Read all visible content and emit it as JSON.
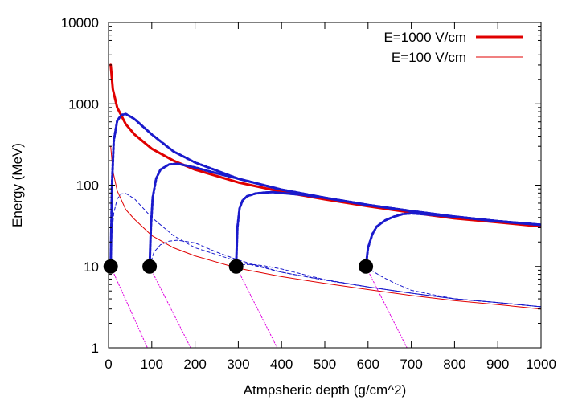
{
  "chart_data": {
    "type": "line",
    "xlabel": "Atmpsheric depth (g/cm^2)",
    "ylabel": "Energy (MeV)",
    "xlim": [
      0,
      1000
    ],
    "ylim": [
      1,
      10000
    ],
    "yscale": "log",
    "grid": false,
    "legend_placement": "top-right",
    "x_ticks": [
      0,
      100,
      200,
      300,
      400,
      500,
      600,
      700,
      800,
      900,
      1000
    ],
    "x_tick_labels": [
      "0",
      "100",
      "200",
      "300",
      "400",
      "500",
      "600",
      "700",
      "800",
      "900",
      "1000"
    ],
    "y_ticks": [
      1,
      10,
      100,
      1000,
      10000
    ],
    "y_tick_labels": [
      "1",
      "10",
      "100",
      "1000",
      "10000"
    ],
    "legend": [
      {
        "label": "E=1000 V/cm",
        "color": "#e00000",
        "style": "thick"
      },
      {
        "label": "E=100 V/cm",
        "color": "#e00000",
        "style": "thin"
      }
    ],
    "series": [
      {
        "role": "legend-1",
        "color": "#e00000",
        "style": "thick-solid",
        "x": [
          5,
          10,
          20,
          40,
          60,
          100,
          150,
          200,
          300,
          400,
          500,
          600,
          700,
          800,
          900,
          1000
        ],
        "y": [
          3000,
          1500,
          900,
          560,
          420,
          280,
          200,
          155,
          108,
          83,
          67,
          55,
          46,
          39,
          35,
          31
        ]
      },
      {
        "role": "legend-2",
        "color": "#e00000",
        "style": "thin-solid",
        "x": [
          5,
          10,
          20,
          40,
          60,
          100,
          150,
          200,
          300,
          400,
          500,
          600,
          700,
          800,
          900,
          1000
        ],
        "y": [
          300,
          150,
          85,
          50,
          38,
          24,
          17,
          13.5,
          9.5,
          7.5,
          6.2,
          5.2,
          4.4,
          3.8,
          3.4,
          3.0
        ]
      },
      {
        "color": "#1a1acc",
        "style": "thick-dashed",
        "x": [
          5,
          8,
          12,
          20,
          30,
          40,
          60,
          100,
          150,
          200,
          300,
          400,
          500,
          600,
          700,
          800,
          900,
          1000
        ],
        "y": [
          10,
          100,
          350,
          620,
          730,
          750,
          650,
          420,
          260,
          190,
          120,
          88,
          70,
          57,
          48,
          41,
          36,
          32.5
        ]
      },
      {
        "color": "#1a1acc",
        "style": "thick-dashed",
        "x": [
          95,
          98,
          102,
          110,
          120,
          140,
          160,
          200,
          250,
          300,
          400,
          500,
          600,
          700,
          800,
          900,
          1000
        ],
        "y": [
          10,
          30,
          70,
          120,
          155,
          180,
          183,
          165,
          140,
          120,
          88,
          70,
          57,
          48,
          41,
          36,
          32.5
        ]
      },
      {
        "color": "#1a1acc",
        "style": "thick-dashed",
        "x": [
          295,
          298,
          303,
          310,
          320,
          340,
          360,
          380,
          400,
          450,
          500,
          600,
          700,
          800,
          900,
          1000
        ],
        "y": [
          10,
          30,
          52,
          65,
          73,
          79,
          81,
          82,
          80,
          76,
          70,
          57,
          48,
          41,
          36,
          32.5
        ]
      },
      {
        "color": "#1a1acc",
        "style": "thick-dashed",
        "x": [
          595,
          600,
          610,
          620,
          640,
          660,
          680,
          700,
          750,
          800,
          900,
          1000
        ],
        "y": [
          10,
          17,
          25,
          31,
          37,
          41,
          44,
          45,
          43,
          41,
          36,
          32.5
        ]
      },
      {
        "color": "#1a1acc",
        "style": "thin-dashed",
        "x": [
          5,
          8,
          12,
          20,
          30,
          40,
          60,
          100,
          150,
          200,
          300,
          400,
          500,
          600,
          700,
          800,
          900,
          1000
        ],
        "y": [
          10,
          25,
          45,
          68,
          78,
          79,
          68,
          40,
          24,
          17,
          11.5,
          8.5,
          6.8,
          5.6,
          4.7,
          4.0,
          3.6,
          3.2
        ]
      },
      {
        "color": "#1a1acc",
        "style": "thin-dashed",
        "x": [
          95,
          105,
          120,
          140,
          160,
          200,
          250,
          300,
          400,
          500,
          600,
          700,
          800,
          900,
          1000
        ],
        "y": [
          10,
          15,
          18.5,
          20.5,
          21,
          19.5,
          15,
          12,
          8.5,
          6.8,
          5.6,
          4.7,
          4.0,
          3.6,
          3.2
        ]
      },
      {
        "color": "#1a1acc",
        "style": "thin-dashed",
        "x": [
          295,
          310,
          330,
          360,
          400,
          450,
          500,
          600,
          700,
          800,
          900,
          1000
        ],
        "y": [
          10,
          10.5,
          10.6,
          10.2,
          9.3,
          8.0,
          6.9,
          5.6,
          4.7,
          4.0,
          3.6,
          3.2
        ]
      },
      {
        "color": "#1a1acc",
        "style": "thin-dashed",
        "x": [
          595,
          610,
          630,
          660,
          700,
          750,
          800,
          900,
          1000
        ],
        "y": [
          10,
          8.8,
          7.6,
          6.3,
          5.1,
          4.5,
          4.0,
          3.6,
          3.2
        ]
      },
      {
        "color": "#e000e0",
        "style": "dotted",
        "x": [
          5,
          90
        ],
        "y": [
          10,
          1
        ]
      },
      {
        "color": "#e000e0",
        "style": "dotted",
        "x": [
          95,
          190
        ],
        "y": [
          10,
          1
        ]
      },
      {
        "color": "#e000e0",
        "style": "dotted",
        "x": [
          295,
          390
        ],
        "y": [
          10,
          1
        ]
      },
      {
        "color": "#e000e0",
        "style": "dotted",
        "x": [
          595,
          690
        ],
        "y": [
          10,
          1
        ]
      }
    ],
    "markers": {
      "color": "#000000",
      "x": [
        5,
        95,
        295,
        595
      ],
      "y": [
        10,
        10,
        10,
        10
      ]
    }
  }
}
